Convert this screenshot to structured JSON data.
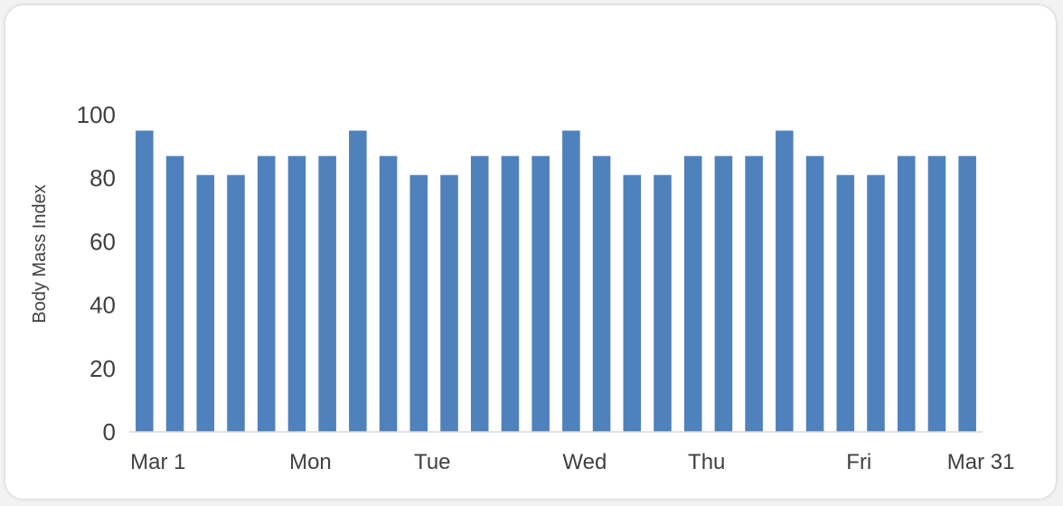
{
  "chart_data": {
    "type": "bar",
    "title": "",
    "xlabel": "",
    "ylabel": "Body Mass Index",
    "ylim": [
      0,
      100
    ],
    "yticks": [
      "0",
      "20",
      "40",
      "60",
      "80",
      "100"
    ],
    "grid": false,
    "bar_color": "#4f81bd",
    "x_tick_labels": [
      {
        "index": 0,
        "label": "Mar 1"
      },
      {
        "index": 5,
        "label": "Mon"
      },
      {
        "index": 9,
        "label": "Tue"
      },
      {
        "index": 14,
        "label": "Wed"
      },
      {
        "index": 18,
        "label": "Thu"
      },
      {
        "index": 23,
        "label": "Fri"
      },
      {
        "index": 27,
        "label": "Mar 31"
      }
    ],
    "values": [
      95,
      87,
      81,
      81,
      87,
      87,
      87,
      95,
      87,
      81,
      81,
      87,
      87,
      87,
      95,
      87,
      81,
      81,
      87,
      87,
      87,
      95,
      87,
      81,
      81,
      87,
      87,
      87
    ]
  }
}
